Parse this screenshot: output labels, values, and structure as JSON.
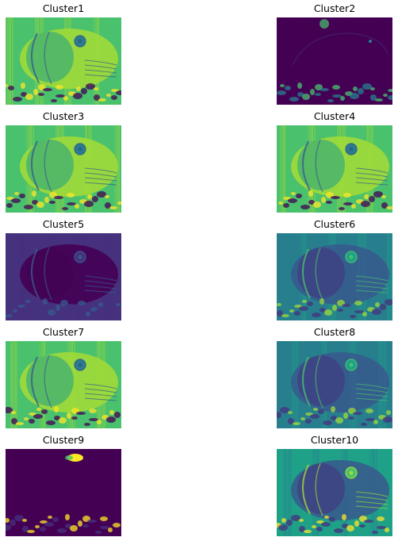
{
  "figure": {
    "colormap": "viridis",
    "colors": {
      "dark": "#440154",
      "purple": "#46317e",
      "blue": "#365c8d",
      "teal": "#277f8e",
      "green": "#1fa187",
      "lime": "#4ac16d",
      "yellowgreen": "#a0da39",
      "yellow": "#fde725"
    },
    "panels": [
      {
        "title": "Cluster1",
        "style": "bright"
      },
      {
        "title": "Cluster2",
        "style": "dark-sparse"
      },
      {
        "title": "Cluster3",
        "style": "bright"
      },
      {
        "title": "Cluster4",
        "style": "bright"
      },
      {
        "title": "Cluster5",
        "style": "dark"
      },
      {
        "title": "Cluster6",
        "style": "mid"
      },
      {
        "title": "Cluster7",
        "style": "bright"
      },
      {
        "title": "Cluster8",
        "style": "mid"
      },
      {
        "title": "Cluster9",
        "style": "dark-spot"
      },
      {
        "title": "Cluster10",
        "style": "mid-bright"
      }
    ]
  }
}
